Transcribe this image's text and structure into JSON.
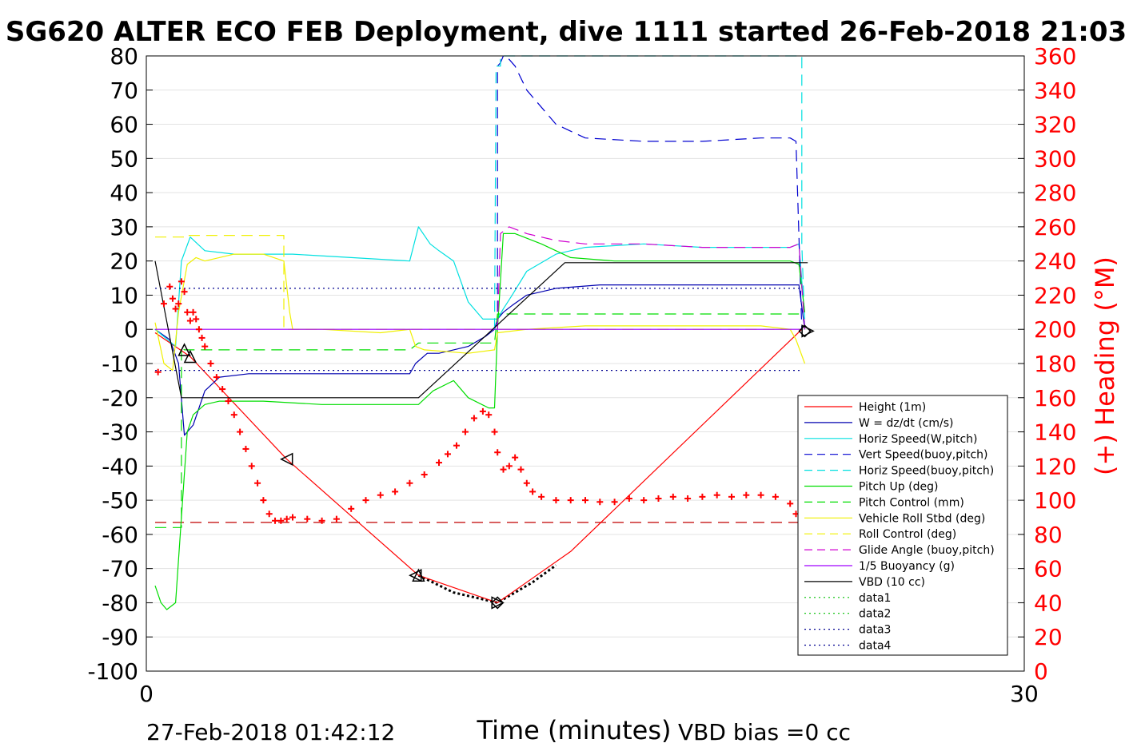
{
  "chart_data": {
    "type": "line",
    "title": "SG620 ALTER ECO FEB Deployment, dive 1111 started 26-Feb-2018 21:03",
    "xlabel": "Time (minutes)",
    "ylabel_right": "(+) Heading (°M)",
    "xlim": [
      0,
      30
    ],
    "ylim": [
      -100,
      80
    ],
    "ylim_right": [
      0,
      360
    ],
    "x_ticks": [
      "0",
      "30"
    ],
    "y_ticks": [
      "80",
      "70",
      "60",
      "50",
      "40",
      "30",
      "20",
      "10",
      "0",
      "-10",
      "-20",
      "-30",
      "-40",
      "-50",
      "-60",
      "-70",
      "-80",
      "-90",
      "-100"
    ],
    "y_right_ticks": [
      "360",
      "340",
      "320",
      "300",
      "280",
      "260",
      "240",
      "220",
      "200",
      "180",
      "160",
      "140",
      "120",
      "100",
      "80",
      "60",
      "40",
      "20",
      "0"
    ],
    "grid": true,
    "legend_position": "lower-right",
    "footer_left": "27-Feb-2018 01:42:12",
    "footer_right": "VBD bias =0 cc",
    "colors": {
      "red": "#ff0000",
      "blue": "#0000b0",
      "cyan": "#00e0e0",
      "green": "#00dd00",
      "yellow": "#f0f000",
      "magenta": "#d000d0",
      "black": "#000000",
      "dblue": "#000090"
    },
    "series": [
      {
        "name": "Height (1m)",
        "color": "#ff0000",
        "style": "solid",
        "x": [
          0.3,
          1.5,
          4.8,
          9.3,
          12.0,
          14.5,
          22.4
        ],
        "y": [
          -1,
          -8,
          -38,
          -72,
          -80,
          -65,
          0
        ]
      },
      {
        "name": "W = dz/dt (cm/s)",
        "color": "#0000b0",
        "style": "solid",
        "x": [
          0.3,
          0.8,
          1.1,
          1.3,
          1.6,
          2.0,
          2.5,
          3.5,
          5.0,
          7.0,
          9.0,
          9.2,
          9.6,
          10.0,
          10.5,
          11.0,
          11.6,
          11.9,
          12.0,
          12.2,
          12.5,
          13.0,
          14.0,
          15.5,
          17.0,
          19.0,
          21.0,
          22.0,
          22.3,
          22.5
        ],
        "y": [
          0,
          -3,
          -10,
          -31,
          -28,
          -18,
          -14,
          -13,
          -13,
          -13,
          -13,
          -10,
          -7,
          -7,
          -6,
          -5,
          -2,
          0,
          3,
          5,
          7,
          10,
          12,
          13,
          13,
          13,
          13,
          13,
          13,
          0
        ]
      },
      {
        "name": "Horiz Speed(W,pitch)",
        "color": "#00e0e0",
        "style": "solid",
        "x": [
          0.3,
          1.0,
          1.2,
          1.5,
          2.0,
          3.0,
          5.0,
          7.0,
          9.0,
          9.3,
          9.7,
          10.0,
          10.5,
          11.0,
          11.5,
          12.0,
          12.2,
          12.5,
          13.0,
          14.0,
          15.0,
          17.0,
          19.0,
          21.0,
          22.0,
          22.3,
          22.5
        ],
        "y": [
          0,
          -5,
          20,
          27,
          23,
          22,
          22,
          21,
          20,
          30,
          25,
          23,
          20,
          8,
          3,
          3,
          6,
          10,
          17,
          22,
          24,
          25,
          24,
          24,
          24,
          25,
          3
        ]
      },
      {
        "name": "Vert Speed(buoy,pitch)",
        "color": "#0000d0",
        "style": "dash",
        "x": [
          12.0,
          12.0,
          12.1,
          12.2,
          12.4,
          12.6,
          13.0,
          14.0,
          15.0,
          17.0,
          19.0,
          21.0,
          22.0,
          22.2,
          22.4
        ],
        "y": [
          0,
          77,
          78,
          80,
          79,
          77,
          70,
          60,
          56,
          55,
          55,
          56,
          56,
          55,
          0
        ]
      },
      {
        "name": "Horiz Speed(buoy,pitch)",
        "color": "#00e0e0",
        "style": "dash",
        "x": [
          11.9,
          11.95,
          12.1,
          12.1,
          22.4,
          22.4,
          22.5
        ],
        "y": [
          0,
          77,
          77,
          80,
          80,
          25,
          0
        ]
      },
      {
        "name": "Pitch Up (deg)",
        "color": "#00dd00",
        "style": "solid",
        "x": [
          0.3,
          0.5,
          0.7,
          1.0,
          1.2,
          1.4,
          1.6,
          2.0,
          2.5,
          4.0,
          6.0,
          8.0,
          9.3,
          9.8,
          10.5,
          11.0,
          11.7,
          11.9,
          12.0,
          12.2,
          12.6,
          13.5,
          14.5,
          16.0,
          18.0,
          20.0,
          22.0,
          22.3,
          22.5
        ],
        "y": [
          -75,
          -80,
          -82,
          -80,
          -55,
          -30,
          -25,
          -22,
          -21,
          -21,
          -22,
          -22,
          -22,
          -18,
          -15,
          -20,
          -23,
          -23,
          0,
          28,
          28,
          25,
          21,
          20,
          20,
          20,
          20,
          19,
          5
        ]
      },
      {
        "name": "Pitch Control (mm)",
        "color": "#00dd00",
        "style": "dash",
        "x": [
          0.3,
          1.2,
          1.2,
          1.3,
          9.0,
          9.3,
          11.9,
          12.0,
          22.3
        ],
        "y": [
          -58,
          -58,
          -5,
          -6,
          -6,
          -4,
          -4,
          4.5,
          4.5
        ]
      },
      {
        "name": "Vehicle Roll Stbd (deg)",
        "color": "#f0f000",
        "style": "solid",
        "x": [
          0.3,
          0.6,
          0.9,
          1.1,
          1.4,
          1.7,
          2.0,
          3.0,
          4.0,
          4.7,
          4.9,
          5.0,
          6.0,
          8.0,
          9.0,
          9.2,
          9.5,
          11.0,
          11.9,
          12.0,
          13.0,
          15.0,
          17.0,
          19.0,
          21.0,
          22.0,
          22.2,
          22.5
        ],
        "y": [
          2,
          -10,
          -12,
          5,
          19,
          21,
          20,
          22,
          22,
          20,
          5,
          0,
          0,
          -1,
          0,
          -5,
          -6,
          -7,
          -6,
          -1,
          0,
          1,
          1,
          1,
          1,
          0,
          -3,
          -10
        ]
      },
      {
        "name": "Roll Control (deg)",
        "color": "#f0f000",
        "style": "dash",
        "x": [
          0.3,
          1.3,
          1.3,
          4.7,
          4.7,
          22.4
        ],
        "y": [
          27,
          27,
          27.5,
          27.5,
          0,
          0
        ]
      },
      {
        "name": "Glide Angle (buoy,pitch)",
        "color": "#d000d0",
        "style": "dash",
        "x": [
          12.0,
          12.1,
          12.4,
          13.0,
          14.0,
          15.0,
          17.0,
          19.0,
          21.0,
          22.0,
          22.3,
          22.5
        ],
        "y": [
          0,
          28,
          30,
          28,
          26,
          25,
          25,
          24,
          24,
          24,
          25,
          0
        ]
      },
      {
        "name": "1/5 Buoyancy (g)",
        "color": "#a000ff",
        "style": "solid",
        "x": [
          0.3,
          22.4
        ],
        "y": [
          0,
          0
        ]
      },
      {
        "name": "VBD (10 cc)",
        "color": "#000000",
        "style": "solid",
        "x": [
          0.3,
          1.2,
          9.3,
          14.3,
          22.6
        ],
        "y": [
          20,
          -20,
          -20,
          19.5,
          19.5
        ]
      },
      {
        "name": "data1",
        "color": "#00c000",
        "style": "dot",
        "x": [],
        "y": []
      },
      {
        "name": "data2",
        "color": "#00c000",
        "style": "dot",
        "x": [],
        "y": []
      },
      {
        "name": "data3",
        "color": "#000090",
        "style": "dot",
        "x": [
          0.3,
          22.4
        ],
        "y": [
          12,
          12
        ]
      },
      {
        "name": "data4",
        "color": "#000090",
        "style": "dot",
        "x": [
          0.3,
          22.4
        ],
        "y": [
          -12,
          -12
        ]
      }
    ],
    "extra_lines": [
      {
        "color": "#c00000",
        "style": "dash",
        "x": [
          0.3,
          22.4
        ],
        "y": [
          -56.5,
          -56.5
        ]
      },
      {
        "color": "#000000",
        "style": "dot-thick",
        "x": [
          9.3,
          10.5,
          12.0,
          13.2,
          14.0
        ],
        "y": [
          -72,
          -77,
          -80,
          -74,
          -69
        ]
      }
    ],
    "heading_points": {
      "color": "#ff0000",
      "axis": "right",
      "x": [
        0.4,
        0.6,
        0.8,
        0.9,
        1.0,
        1.1,
        1.2,
        1.3,
        1.4,
        1.5,
        1.6,
        1.7,
        1.8,
        1.9,
        2.0,
        2.2,
        2.4,
        2.6,
        2.8,
        3.0,
        3.2,
        3.4,
        3.6,
        3.8,
        4.0,
        4.2,
        4.4,
        4.6,
        4.8,
        5.0,
        5.5,
        6.0,
        6.5,
        7.0,
        7.5,
        8.0,
        8.5,
        9.0,
        9.5,
        10.0,
        10.3,
        10.6,
        10.9,
        11.2,
        11.5,
        11.7,
        11.9,
        12.0,
        12.2,
        12.4,
        12.6,
        12.8,
        13.0,
        13.2,
        13.5,
        14.0,
        14.5,
        15.0,
        15.5,
        16.0,
        16.5,
        17.0,
        17.5,
        18.0,
        18.5,
        19.0,
        19.5,
        20.0,
        20.5,
        21.0,
        21.5,
        22.0,
        22.2,
        22.4
      ],
      "y": [
        175,
        215,
        225,
        218,
        212,
        215,
        228,
        222,
        210,
        205,
        210,
        206,
        200,
        195,
        190,
        180,
        172,
        165,
        158,
        150,
        140,
        130,
        120,
        110,
        100,
        92,
        88,
        88,
        89,
        90,
        89,
        88,
        89,
        95,
        100,
        103,
        105,
        110,
        115,
        122,
        127,
        132,
        140,
        148,
        152,
        150,
        140,
        128,
        118,
        120,
        125,
        118,
        110,
        105,
        102,
        100,
        100,
        100,
        99,
        99,
        101,
        100,
        101,
        102,
        101,
        102,
        103,
        102,
        103,
        103,
        102,
        98,
        92,
        85
      ]
    },
    "markers": [
      {
        "symbol": "triangle-up",
        "x": 1.3,
        "y": -6
      },
      {
        "symbol": "triangle-up",
        "x": 1.5,
        "y": -8
      },
      {
        "symbol": "triangle-left",
        "x": 4.8,
        "y": -38
      },
      {
        "symbol": "triangle-up",
        "x": 9.3,
        "y": -72
      },
      {
        "symbol": "triangle-left",
        "x": 9.2,
        "y": -72
      },
      {
        "symbol": "diamond",
        "x": 12.0,
        "y": -80
      },
      {
        "symbol": "triangle-right",
        "x": 12.0,
        "y": -80
      },
      {
        "symbol": "diamond",
        "x": 22.5,
        "y": -0.5
      },
      {
        "symbol": "triangle-right",
        "x": 22.6,
        "y": -0.5
      }
    ]
  }
}
